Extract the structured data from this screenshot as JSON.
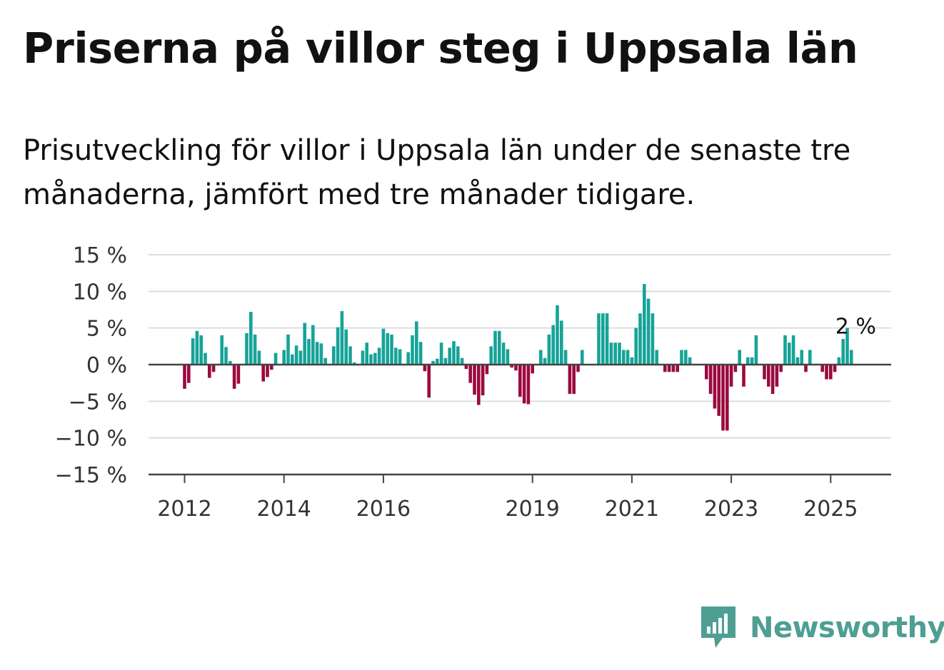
{
  "title": "Priserna på villor steg i Uppsala län",
  "subtitle": "Prisutveckling för villor i Uppsala län under de senaste tre månaderna, jämfört med tre månader tidigare.",
  "brand": {
    "name": "Newsworthy",
    "color": "#4e9e93",
    "icon": "newsworthy-logo-icon"
  },
  "colors": {
    "positive": "#17a398",
    "negative": "#9b0a3f",
    "grid": "#dddddd",
    "baseline": "#444444"
  },
  "chart_data": {
    "type": "bar",
    "title": "Priserna på villor steg i Uppsala län",
    "xlabel": "",
    "ylabel": "",
    "ylim": [
      -15,
      15
    ],
    "yticks": [
      15,
      10,
      5,
      0,
      -5,
      -10,
      -15
    ],
    "ytick_labels": [
      "15 %",
      "10 %",
      "5 %",
      "0 %",
      "−5 %",
      "−10 %",
      "−15 %"
    ],
    "xtick_labels": [
      "2012",
      "2014",
      "2016",
      "2019",
      "2021",
      "2023",
      "2025"
    ],
    "xtick_years": [
      2012,
      2014,
      2016,
      2019,
      2021,
      2023,
      2025
    ],
    "start": "2012-01",
    "grid": true,
    "annotation": {
      "text": "2 %",
      "value": 2
    },
    "values": [
      -3.3,
      -2.5,
      3.6,
      4.6,
      4.0,
      1.6,
      -1.8,
      -1.0,
      0,
      4.0,
      2.4,
      0.5,
      -3.3,
      -2.6,
      0,
      4.3,
      7.2,
      4.1,
      1.9,
      -2.3,
      -1.7,
      -0.7,
      1.6,
      0,
      2.0,
      4.1,
      1.4,
      2.6,
      1.9,
      5.7,
      3.5,
      5.4,
      3.1,
      2.9,
      0.9,
      0,
      2.5,
      5.1,
      7.3,
      4.8,
      2.5,
      0.3,
      0,
      1.9,
      3.0,
      1.4,
      1.6,
      2.3,
      4.9,
      4.3,
      4.1,
      2.3,
      2.1,
      0,
      1.7,
      4.0,
      5.9,
      3.1,
      -0.9,
      -4.5,
      0.5,
      0.8,
      3.0,
      0.9,
      2.3,
      3.2,
      2.5,
      0.9,
      -0.6,
      -2.5,
      -4.1,
      -5.5,
      -4.2,
      -1.3,
      2.5,
      4.6,
      4.6,
      3.0,
      2.1,
      -0.4,
      -0.8,
      -4.4,
      -5.3,
      -5.4,
      -1.2,
      0,
      2.0,
      0.9,
      4.1,
      5.4,
      8.1,
      6.0,
      2.0,
      -4.0,
      -4.0,
      -1.0,
      2.0,
      0,
      0,
      0,
      7.0,
      7.0,
      7.0,
      3.0,
      3.0,
      3.0,
      2.0,
      2.0,
      1.0,
      5.0,
      7.0,
      11.0,
      9.0,
      7.0,
      2.0,
      0,
      -1.0,
      -1.0,
      -1.0,
      -1.0,
      2.0,
      2.0,
      1.0,
      0,
      0,
      0,
      -2.0,
      -4.0,
      -6.0,
      -7.0,
      -9.0,
      -9.0,
      -3.0,
      -1.0,
      2.0,
      -3.0,
      1.0,
      1.0,
      4.0,
      0,
      -2.0,
      -3.0,
      -4.0,
      -3.0,
      -1.0,
      4.0,
      3.0,
      4.0,
      1.0,
      2.0,
      -1.0,
      2.0,
      0,
      0,
      -1.0,
      -2.0,
      -2.0,
      -1.0,
      1.0,
      3.5,
      5.0,
      2.0
    ]
  }
}
